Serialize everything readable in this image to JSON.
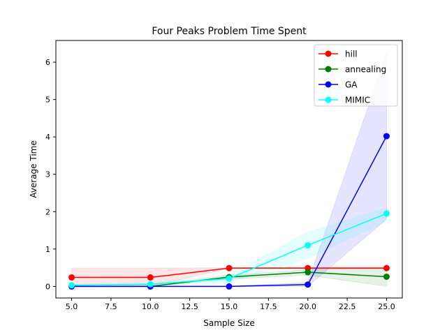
{
  "chart_data": {
    "type": "line",
    "title": "Four Peaks Problem Time Spent",
    "xlabel": "Sample Size",
    "ylabel": "Average Time",
    "x": [
      5,
      10,
      15,
      20,
      25
    ],
    "xlim": [
      4.0,
      26.0
    ],
    "ylim": [
      -0.31,
      6.58
    ],
    "xticks": [
      5.0,
      7.5,
      10.0,
      12.5,
      15.0,
      17.5,
      20.0,
      22.5,
      25.0
    ],
    "xtick_labels": [
      "5.0",
      "7.5",
      "10.0",
      "12.5",
      "15.0",
      "17.5",
      "20.0",
      "22.5",
      "25.0"
    ],
    "yticks": [
      0,
      1,
      2,
      3,
      4,
      5,
      6
    ],
    "ytick_labels": [
      "0",
      "1",
      "2",
      "3",
      "4",
      "5",
      "6"
    ],
    "grid": false,
    "legend_position": "top-right",
    "series": [
      {
        "name": "hill",
        "color": "#ff0000",
        "fill": "#ff0000",
        "values": [
          0.24,
          0.24,
          0.49,
          0.49,
          0.49
        ],
        "band_lower": [
          0.0,
          0.0,
          0.48,
          0.47,
          0.47
        ],
        "band_upper": [
          0.49,
          0.49,
          0.5,
          0.51,
          0.51
        ]
      },
      {
        "name": "annealing",
        "color": "#008000",
        "fill": "#008000",
        "values": [
          0.0,
          0.0,
          0.25,
          0.38,
          0.26
        ],
        "band_lower": [
          0.0,
          0.0,
          0.2,
          0.3,
          0.0
        ],
        "band_upper": [
          0.0,
          0.01,
          0.3,
          0.45,
          0.5
        ]
      },
      {
        "name": "GA",
        "color": "#0000ff",
        "fill": "#0000ff",
        "values": [
          0.0,
          0.0,
          0.0,
          0.05,
          4.02
        ],
        "band_lower": [
          0.0,
          0.0,
          0.0,
          0.0,
          1.8
        ],
        "band_upper": [
          0.01,
          0.01,
          0.01,
          0.1,
          6.24
        ]
      },
      {
        "name": "MIMIC",
        "color": "#00ffff",
        "fill": "#00ffff",
        "values": [
          0.03,
          0.06,
          0.21,
          1.1,
          1.95
        ],
        "band_lower": [
          0.0,
          0.02,
          0.1,
          0.75,
          1.75
        ],
        "band_upper": [
          0.06,
          0.1,
          0.3,
          1.45,
          2.1
        ]
      }
    ]
  }
}
